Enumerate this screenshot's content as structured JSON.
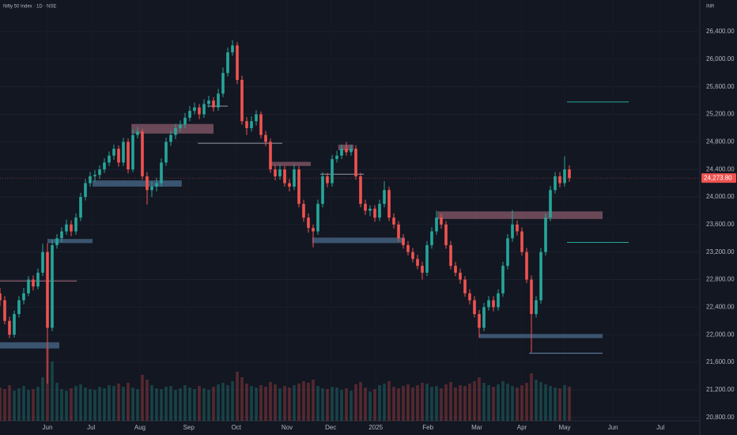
{
  "chart_data": {
    "type": "candlestick",
    "title": "Nifty 50 Index · 1D · NSE",
    "currency": "INR",
    "up_color": "#26a69a",
    "down_color": "#ef5350",
    "xlim": [
      0,
      147.5
    ],
    "xticks": [
      {
        "value": 10,
        "label": "Jun"
      },
      {
        "value": 19.2,
        "label": "Jul"
      },
      {
        "value": 29.5,
        "label": "Aug"
      },
      {
        "value": 39.8,
        "label": "Sep"
      },
      {
        "value": 49.8,
        "label": "Oct"
      },
      {
        "value": 60.5,
        "label": "Nov"
      },
      {
        "value": 69.7,
        "label": "Dec"
      },
      {
        "value": 79.2,
        "label": "2025"
      },
      {
        "value": 90.2,
        "label": "Feb"
      },
      {
        "value": 100.5,
        "label": "Mar"
      },
      {
        "value": 110,
        "label": "Apr"
      },
      {
        "value": 119,
        "label": "May"
      },
      {
        "value": 129.2,
        "label": "Jun"
      },
      {
        "value": 139.2,
        "label": "Jul"
      }
    ],
    "ylim": [
      20750,
      26860
    ],
    "yticks": [
      {
        "value": 26400,
        "label": "26,400.00"
      },
      {
        "value": 26000,
        "label": "26,000.00"
      },
      {
        "value": 25600,
        "label": "25,600.00"
      },
      {
        "value": 25200,
        "label": "25,200.00"
      },
      {
        "value": 24800,
        "label": "24,800.00"
      },
      {
        "value": 24400,
        "label": "24,400.00"
      },
      {
        "value": 24000,
        "label": "24,000.00"
      },
      {
        "value": 23600,
        "label": "23,600.00"
      },
      {
        "value": 23200,
        "label": "23,200.00"
      },
      {
        "value": 22800,
        "label": "22,800.00"
      },
      {
        "value": 22400,
        "label": "22,400.00"
      },
      {
        "value": 22000,
        "label": "22,000.00"
      },
      {
        "value": 21600,
        "label": "21,600.00"
      },
      {
        "value": 21200,
        "label": "21,200.00"
      },
      {
        "value": 20800,
        "label": "20,800.00"
      }
    ],
    "last_price_label": "24,273.80",
    "candles": [
      [
        22600,
        22680,
        22420,
        22500
      ],
      [
        22500,
        22560,
        22150,
        22200
      ],
      [
        22200,
        22260,
        21950,
        22000
      ],
      [
        22000,
        22350,
        21960,
        22300
      ],
      [
        22300,
        22560,
        22250,
        22500
      ],
      [
        22500,
        22680,
        22440,
        22600
      ],
      [
        22600,
        22850,
        22560,
        22800
      ],
      [
        22800,
        22860,
        22640,
        22700
      ],
      [
        22700,
        22960,
        22660,
        22900
      ],
      [
        22900,
        23320,
        22850,
        23200
      ],
      [
        23200,
        23330,
        21290,
        22100
      ],
      [
        22100,
        23380,
        22050,
        23300
      ],
      [
        23300,
        23460,
        23250,
        23400
      ],
      [
        23400,
        23560,
        23340,
        23500
      ],
      [
        23500,
        23670,
        23450,
        23600
      ],
      [
        23600,
        23660,
        23430,
        23500
      ],
      [
        23500,
        23760,
        23450,
        23700
      ],
      [
        23700,
        24060,
        23650,
        24000
      ],
      [
        24000,
        24260,
        23950,
        24200
      ],
      [
        24200,
        24360,
        24150,
        24300
      ],
      [
        24300,
        24390,
        24220,
        24320
      ],
      [
        24320,
        24460,
        24260,
        24400
      ],
      [
        24400,
        24560,
        24350,
        24500
      ],
      [
        24500,
        24660,
        24450,
        24600
      ],
      [
        24600,
        24760,
        24540,
        24700
      ],
      [
        24700,
        24750,
        24440,
        24500
      ],
      [
        24500,
        24860,
        24450,
        24800
      ],
      [
        24800,
        24850,
        24340,
        24400
      ],
      [
        24400,
        24980,
        24360,
        24900
      ],
      [
        24900,
        25020,
        24850,
        24950
      ],
      [
        24950,
        24990,
        24250,
        24300
      ],
      [
        24300,
        24360,
        23890,
        24100
      ],
      [
        24100,
        24220,
        24000,
        24150
      ],
      [
        24150,
        24280,
        24080,
        24200
      ],
      [
        24200,
        24560,
        24150,
        24500
      ],
      [
        24500,
        24860,
        24450,
        24800
      ],
      [
        24800,
        24960,
        24740,
        24900
      ],
      [
        24900,
        25060,
        24840,
        25000
      ],
      [
        25000,
        25110,
        24950,
        25050
      ],
      [
        25050,
        25220,
        25000,
        25150
      ],
      [
        25150,
        25320,
        25100,
        25250
      ],
      [
        25250,
        25370,
        25200,
        25300
      ],
      [
        25300,
        25350,
        25130,
        25200
      ],
      [
        25200,
        25420,
        25150,
        25350
      ],
      [
        25350,
        25470,
        25300,
        25400
      ],
      [
        25400,
        25450,
        25240,
        25300
      ],
      [
        25300,
        25570,
        25250,
        25500
      ],
      [
        25500,
        25880,
        25450,
        25800
      ],
      [
        25800,
        26170,
        25750,
        26100
      ],
      [
        26100,
        26277,
        26050,
        26200
      ],
      [
        26200,
        26250,
        25640,
        25700
      ],
      [
        25700,
        25760,
        25050,
        25100
      ],
      [
        25100,
        25160,
        24900,
        25000
      ],
      [
        25000,
        25170,
        24950,
        25100
      ],
      [
        25100,
        25260,
        25040,
        25200
      ],
      [
        25200,
        25240,
        24850,
        24900
      ],
      [
        24900,
        24960,
        24740,
        24800
      ],
      [
        24800,
        24850,
        24350,
        24400
      ],
      [
        24400,
        24460,
        24240,
        24300
      ],
      [
        24300,
        24470,
        24250,
        24400
      ],
      [
        24400,
        24450,
        24150,
        24200
      ],
      [
        24200,
        24260,
        24080,
        24150
      ],
      [
        24150,
        24470,
        24100,
        24400
      ],
      [
        24400,
        24450,
        23850,
        23900
      ],
      [
        23900,
        23960,
        23640,
        23700
      ],
      [
        23700,
        23760,
        23480,
        23550
      ],
      [
        23550,
        23600,
        23270,
        23500
      ],
      [
        23500,
        23960,
        23450,
        23900
      ],
      [
        23900,
        24360,
        23850,
        24300
      ],
      [
        24300,
        24350,
        24140,
        24200
      ],
      [
        24200,
        24610,
        24150,
        24550
      ],
      [
        24550,
        24670,
        24500,
        24600
      ],
      [
        24600,
        24760,
        24550,
        24700
      ],
      [
        24700,
        24800,
        24600,
        24650
      ],
      [
        24650,
        24760,
        24600,
        24700
      ],
      [
        24700,
        24750,
        24250,
        24300
      ],
      [
        24300,
        24350,
        23850,
        23900
      ],
      [
        23900,
        23960,
        23740,
        23800
      ],
      [
        23800,
        23880,
        23720,
        23830
      ],
      [
        23830,
        23880,
        23640,
        23700
      ],
      [
        23700,
        23960,
        23650,
        23900
      ],
      [
        23900,
        24230,
        23850,
        24100
      ],
      [
        24100,
        24150,
        23650,
        23700
      ],
      [
        23700,
        23760,
        23540,
        23600
      ],
      [
        23600,
        23650,
        23350,
        23400
      ],
      [
        23400,
        23460,
        23250,
        23300
      ],
      [
        23300,
        23360,
        23150,
        23200
      ],
      [
        23200,
        23260,
        23050,
        23100
      ],
      [
        23100,
        23160,
        22950,
        23000
      ],
      [
        23000,
        23060,
        22800,
        22900
      ],
      [
        22900,
        23360,
        22850,
        23300
      ],
      [
        23300,
        23560,
        23250,
        23500
      ],
      [
        23500,
        23800,
        23450,
        23700
      ],
      [
        23700,
        23760,
        23540,
        23600
      ],
      [
        23600,
        23650,
        23250,
        23300
      ],
      [
        23300,
        23360,
        22950,
        23000
      ],
      [
        23000,
        23060,
        22850,
        22900
      ],
      [
        22900,
        22960,
        22740,
        22800
      ],
      [
        22800,
        22850,
        22550,
        22600
      ],
      [
        22600,
        22660,
        22440,
        22500
      ],
      [
        22500,
        22560,
        22250,
        22300
      ],
      [
        22300,
        22360,
        21960,
        22100
      ],
      [
        22100,
        22460,
        22050,
        22400
      ],
      [
        22400,
        22560,
        22350,
        22500
      ],
      [
        22500,
        22560,
        22340,
        22400
      ],
      [
        22400,
        22660,
        22350,
        22600
      ],
      [
        22600,
        23060,
        22550,
        23000
      ],
      [
        23000,
        23460,
        22950,
        23400
      ],
      [
        23400,
        23810,
        23350,
        23600
      ],
      [
        23600,
        23660,
        23440,
        23500
      ],
      [
        23500,
        23560,
        23150,
        23200
      ],
      [
        23200,
        23260,
        22750,
        22800
      ],
      [
        22800,
        22860,
        21740,
        22300
      ],
      [
        22300,
        22560,
        22250,
        22500
      ],
      [
        22500,
        23260,
        22450,
        23200
      ],
      [
        23200,
        23760,
        23150,
        23700
      ],
      [
        23700,
        24160,
        23650,
        24100
      ],
      [
        24100,
        24360,
        24050,
        24300
      ],
      [
        24300,
        24360,
        24140,
        24200
      ],
      [
        24200,
        24590,
        24150,
        24400
      ],
      [
        24400,
        24460,
        24220,
        24273.8
      ]
    ],
    "volume_lim": [
      0,
      100
    ],
    "volume": [
      42,
      40,
      45,
      38,
      41,
      44,
      39,
      40,
      43,
      55,
      92,
      75,
      48,
      40,
      38,
      41,
      44,
      46,
      42,
      40,
      39,
      43,
      41,
      45,
      44,
      47,
      43,
      48,
      42,
      40,
      58,
      52,
      45,
      41,
      40,
      43,
      44,
      39,
      41,
      45,
      42,
      40,
      44,
      41,
      39,
      43,
      46,
      48,
      45,
      50,
      62,
      55,
      47,
      44,
      42,
      45,
      43,
      49,
      46,
      41,
      44,
      42,
      45,
      47,
      50,
      48,
      52,
      44,
      41,
      40,
      43,
      42,
      39,
      41,
      38,
      46,
      49,
      42,
      37,
      40,
      45,
      47,
      50,
      43,
      41,
      44,
      46,
      42,
      45,
      48,
      47,
      43,
      44,
      41,
      46,
      49,
      42,
      45,
      44,
      47,
      50,
      55,
      48,
      45,
      43,
      46,
      50,
      47,
      44,
      42,
      45,
      48,
      60,
      52,
      49,
      46,
      44,
      42,
      41,
      45,
      43
    ],
    "zones": [
      {
        "x": [
          0,
          12.5
        ],
        "y": [
          21800,
          21890
        ],
        "color": "#4a6a8a"
      },
      {
        "x": [
          10,
          19.5
        ],
        "y": [
          23330,
          23390
        ],
        "color": "#4a6a8a"
      },
      {
        "x": [
          19.5,
          38.3
        ],
        "y": [
          24150,
          24240
        ],
        "color": "#4a6a8a"
      },
      {
        "x": [
          27.7,
          45
        ],
        "y": [
          24920,
          25060
        ],
        "color": "#8a5a6a"
      },
      {
        "x": [
          56.7,
          65.5
        ],
        "y": [
          24450,
          24510
        ],
        "color": "#8a5a6a"
      },
      {
        "x": [
          65.8,
          85.3
        ],
        "y": [
          23330,
          23410
        ],
        "color": "#4a6a8a"
      },
      {
        "x": [
          71.3,
          74.5
        ],
        "y": [
          24680,
          24760
        ],
        "color": "#8a5a6a"
      },
      {
        "x": [
          92.2,
          127
        ],
        "y": [
          23680,
          23790
        ],
        "color": "#8a5a6a"
      },
      {
        "x": [
          101,
          127
        ],
        "y": [
          21950,
          22010
        ],
        "color": "#4a6a8a"
      }
    ],
    "levels": [
      {
        "x": [
          0,
          16.2
        ],
        "y": 22780,
        "color": "#b07080"
      },
      {
        "x": [
          41.7,
          59.5
        ],
        "y": 24780,
        "color": "#9598a1"
      },
      {
        "x": [
          43.7,
          48
        ],
        "y": 25320,
        "color": "#9598a1"
      },
      {
        "x": [
          67.5,
          76.7
        ],
        "y": 24330,
        "color": "#9598a1"
      },
      {
        "x": [
          111.5,
          127
        ],
        "y": 21730,
        "color": "#6a8ab0"
      },
      {
        "x": [
          119.5,
          132.5
        ],
        "y": 25380,
        "color": "#26a69a"
      },
      {
        "x": [
          119.5,
          132.5
        ],
        "y": 23340,
        "color": "#26a69a"
      }
    ]
  }
}
